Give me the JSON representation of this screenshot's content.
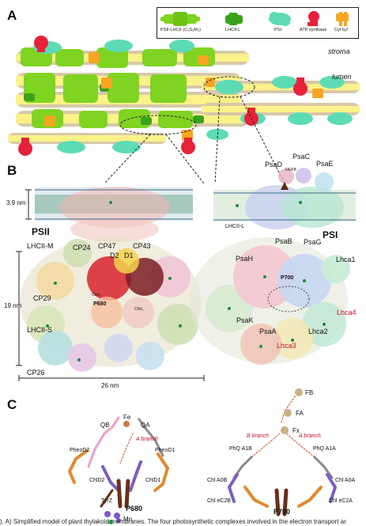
{
  "header_text": "",
  "panels": {
    "a": "A",
    "b": "B",
    "c": "C"
  },
  "legend": [
    {
      "label": "PSII-LHCII (C₂S₂M₂)",
      "color": "#7fd321"
    },
    {
      "label": "LHCII-L",
      "color": "#3aa21a"
    },
    {
      "label": "PSI",
      "color": "#5ddbb4"
    },
    {
      "label": "ATP synthase",
      "color": "#e8213a"
    },
    {
      "label": "Cyt b₆f",
      "color": "#f5a623"
    }
  ],
  "membrane": {
    "stroma": "stroma",
    "lumen": "lumen"
  },
  "side_view": {
    "thickness": "3.9 nm",
    "psii": "PSII",
    "psi": "PSI",
    "lhcii_l": "LHCII-L",
    "psad": "PsaD",
    "psac": "PsaC",
    "psae": "PsaE",
    "fab": "FA/FB"
  },
  "psii_top": {
    "lhcii_m": "LHCII-M",
    "cp24": "CP24",
    "cp47": "CP47",
    "cp43": "CP43",
    "d2": "D2",
    "d1": "D1",
    "cp29": "CP29",
    "lhcii_s": "LHCII-S",
    "cp26": "CP26",
    "p680": "P680",
    "chlzd2": "Chlz₂",
    "chlzd1": "Chlz₁",
    "size19": "19 nm",
    "size26": "26 nm"
  },
  "psi_top": {
    "psab": "PsaB",
    "psag": "PsaG",
    "psah": "PsaH",
    "lhca1": "Lhca1",
    "p700": "P700",
    "psak": "PsaK",
    "lhca4": "Lhca4",
    "psaa": "PsaA",
    "lhca2": "Lhca2",
    "lhca3": "Lhca3"
  },
  "etc_psii": {
    "qb": "QB",
    "fe": "Fe",
    "qa": "QA",
    "a_branch": "A branch",
    "pheod2": "PheoD2",
    "pheod1": "PheoD1",
    "chld2": "ChlD2",
    "chld1": "ChlD1",
    "tyrz": "TyrZ",
    "p680": "P680",
    "mn": "Mn"
  },
  "etc_psi": {
    "fb": "FB",
    "fa": "FA",
    "fx": "Fx",
    "b_branch": "B branch",
    "a_branch": "A branch",
    "phq_b": "PhQ A1B",
    "phq_a": "PhQ A1A",
    "chl_a0b": "Chl A0B",
    "chl_a0a": "Chl A0A",
    "chl_ec2b": "Chl eC2B",
    "chl_ec2a": "Chl eC2A",
    "p700": "P700"
  },
  "caption": "). A) Simplified model of plant thylakoid membranes. The four photosynthetic complexes involved in the electron transport ar"
}
